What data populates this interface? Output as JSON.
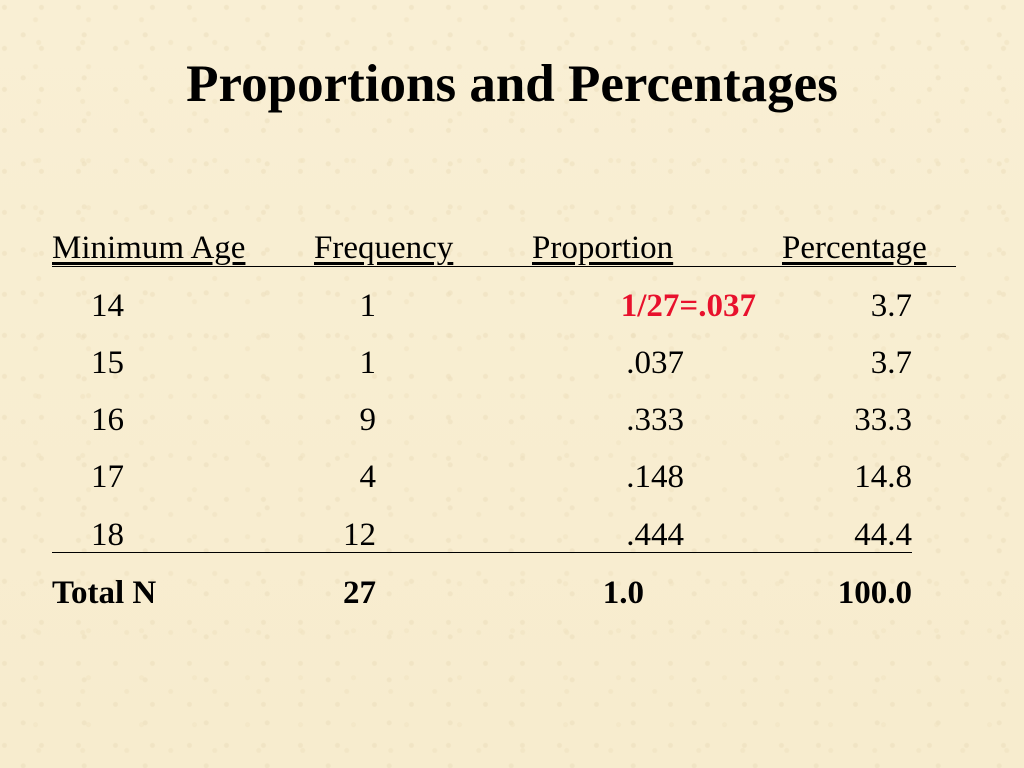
{
  "title": "Proportions and Percentages",
  "table": {
    "headers": {
      "age": "Minimum Age",
      "frequency": "Frequency",
      "proportion": "Proportion",
      "percentage": "Percentage"
    },
    "rows": [
      {
        "age": "14",
        "frequency": "1",
        "proportion": "1/27=.037",
        "percentage": "3.7"
      },
      {
        "age": "15",
        "frequency": "1",
        "proportion": ".037",
        "percentage": "3.7"
      },
      {
        "age": "16",
        "frequency": "9",
        "proportion": ".333",
        "percentage": "33.3"
      },
      {
        "age": "17",
        "frequency": "4",
        "proportion": ".148",
        "percentage": "14.8"
      },
      {
        "age": "18",
        "frequency": "12",
        "proportion": ".444",
        "percentage": "44.4"
      }
    ],
    "total": {
      "label": "Total N",
      "frequency": "27",
      "proportion": "1.0",
      "percentage": "100.0"
    }
  },
  "colors": {
    "background": "#f8eed2",
    "highlight": "#e8112d"
  }
}
